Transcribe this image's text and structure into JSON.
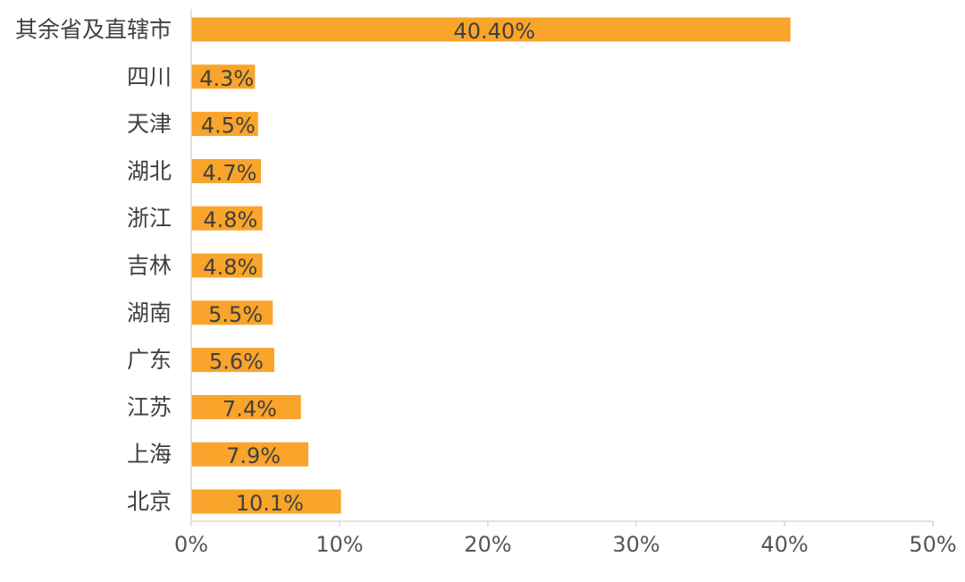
{
  "chart_data": {
    "type": "bar",
    "orientation": "horizontal",
    "categories": [
      "其余省及直辖市",
      "四川",
      "天津",
      "湖北",
      "浙江",
      "吉林",
      "湖南",
      "广东",
      "江苏",
      "上海",
      "北京"
    ],
    "values": [
      40.4,
      4.3,
      4.5,
      4.7,
      4.8,
      4.8,
      5.5,
      5.6,
      7.4,
      7.9,
      10.1
    ],
    "value_labels": [
      "40.40%",
      "4.3%",
      "4.5%",
      "4.7%",
      "4.8%",
      "4.8%",
      "5.5%",
      "5.6%",
      "7.4%",
      "7.9%",
      "10.1%"
    ],
    "xlim": [
      0,
      50
    ],
    "x_ticks": [
      0,
      10,
      20,
      30,
      40,
      50
    ],
    "x_tick_labels": [
      "0%",
      "10%",
      "20%",
      "30%",
      "40%",
      "50%"
    ],
    "grid": false,
    "legend": "none",
    "bar_color": "#F9A42A",
    "axis_color": "#D9D9D9",
    "label_color": "#404040"
  }
}
